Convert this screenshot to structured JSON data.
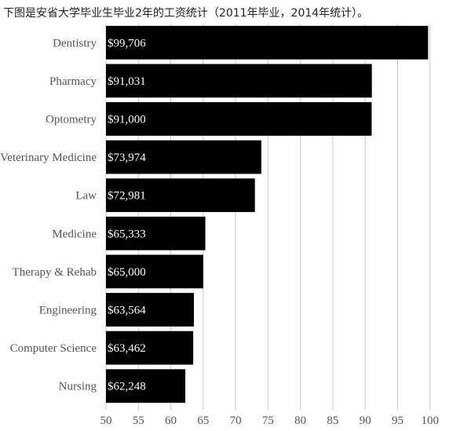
{
  "caption": "下图是安省大学毕业生毕业2年的工资统计（2011年毕业，2014年统计）。",
  "chart_data": {
    "type": "bar",
    "orientation": "horizontal",
    "categories": [
      "Dentistry",
      "Pharmacy",
      "Optometry",
      "Veterinary Medicine",
      "Law",
      "Medicine",
      "Therapy & Rehab",
      "Engineering",
      "Computer Science",
      "Nursing"
    ],
    "values": [
      99706,
      91031,
      91000,
      73974,
      72981,
      65333,
      65000,
      63564,
      63462,
      62248
    ],
    "value_labels": [
      "$99,706",
      "$91,031",
      "$91,000",
      "$73,974",
      "$72,981",
      "$65,333",
      "$65,000",
      "$63,564",
      "$63,462",
      "$62,248"
    ],
    "x_ticks": [
      50,
      55,
      60,
      65,
      70,
      75,
      80,
      85,
      90,
      95,
      100
    ],
    "x_tick_scale": 1000,
    "xlim": [
      50000,
      101000
    ],
    "grid": true,
    "bar_color": "#000000",
    "grid_color": "#c8c8c8"
  }
}
